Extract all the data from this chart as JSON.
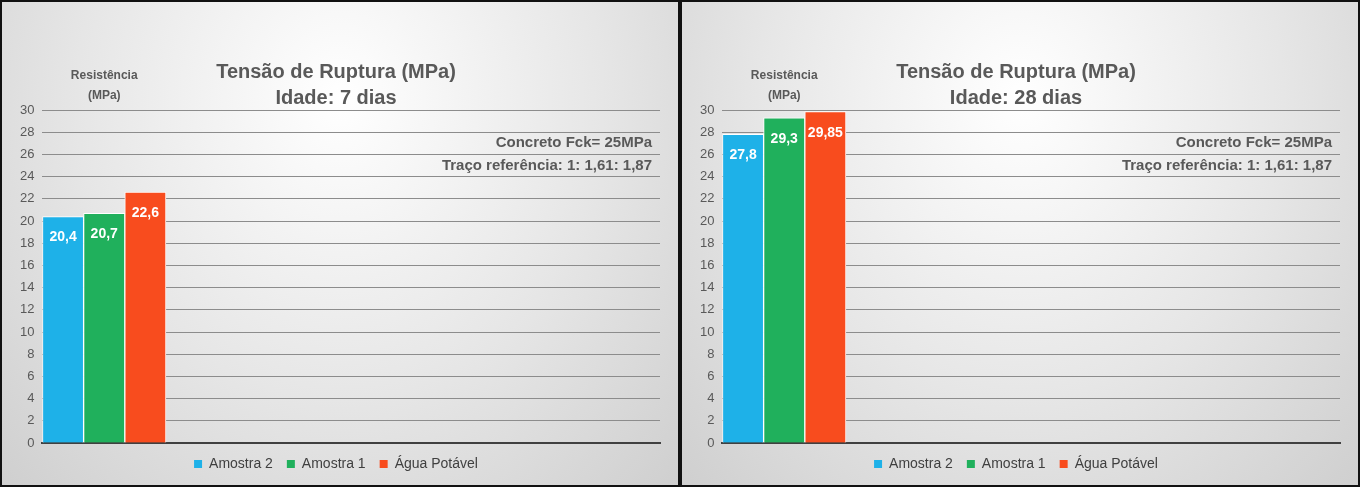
{
  "chart_data": [
    {
      "type": "bar",
      "title": "Tensão de Ruptura (MPa)",
      "subtitle": "Idade: 7 dias",
      "ylabel": "Resistência (MPa)",
      "categories": [
        null,
        null,
        null,
        null,
        null
      ],
      "series": [
        {
          "name": "Amostra 2",
          "color": "#1eb1e8",
          "values": [
            20.4,
            null,
            null,
            null,
            null
          ],
          "value_labels": [
            "20,4",
            null,
            null,
            null,
            null
          ]
        },
        {
          "name": "Amostra 1",
          "color": "#20b05c",
          "values": [
            20.7,
            null,
            null,
            null,
            null
          ],
          "value_labels": [
            "20,7",
            null,
            null,
            null,
            null
          ]
        },
        {
          "name": "Água Potável",
          "color": "#f84c1e",
          "values": [
            22.6,
            null,
            null,
            null,
            null
          ],
          "value_labels": [
            "22,6",
            null,
            null,
            null,
            null
          ]
        }
      ],
      "ylim": [
        0,
        30
      ],
      "yticks": [
        0,
        2,
        4,
        6,
        8,
        10,
        12,
        14,
        16,
        18,
        20,
        22,
        24,
        26,
        28,
        30
      ],
      "grid": "y",
      "legend": "bottom",
      "tick_labels": "y",
      "annotations": [
        "Concreto Fck= 25MPa",
        "Traço referência: 1: 1,61: 1,87"
      ]
    },
    {
      "type": "bar",
      "title": "Tensão de Ruptura (MPa)",
      "subtitle": "Idade: 28 dias",
      "ylabel": "Resistência (MPa)",
      "categories": [
        null,
        null,
        null,
        null,
        null
      ],
      "series": [
        {
          "name": "Amostra 2",
          "color": "#1eb1e8",
          "values": [
            27.8,
            null,
            null,
            null,
            null
          ],
          "value_labels": [
            "27,8",
            null,
            null,
            null,
            null
          ]
        },
        {
          "name": "Amostra 1",
          "color": "#20b05c",
          "values": [
            29.3,
            null,
            null,
            null,
            null
          ],
          "value_labels": [
            "29,3",
            null,
            null,
            null,
            null
          ]
        },
        {
          "name": "Água Potável",
          "color": "#f84c1e",
          "values": [
            29.85,
            null,
            null,
            null,
            null
          ],
          "value_labels": [
            "29,85",
            null,
            null,
            null,
            null
          ]
        }
      ],
      "ylim": [
        0,
        30
      ],
      "yticks": [
        0,
        2,
        4,
        6,
        8,
        10,
        12,
        14,
        16,
        18,
        20,
        22,
        24,
        26,
        28,
        30
      ],
      "grid": "y",
      "legend": "bottom",
      "tick_labels": "y",
      "annotations": [
        "Concreto Fck= 25MPa",
        "Traço referência: 1: 1,61: 1,87"
      ]
    }
  ]
}
